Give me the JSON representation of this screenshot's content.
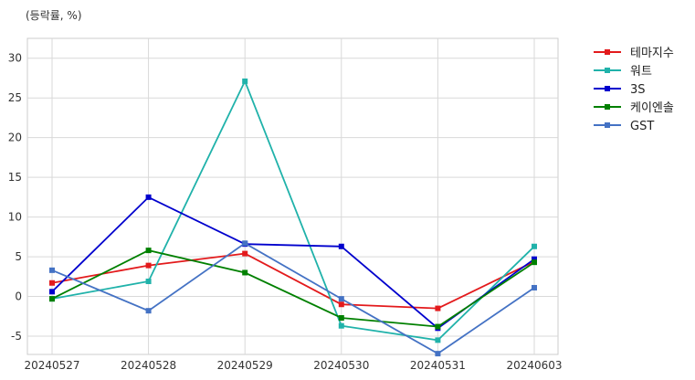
{
  "chart_data": {
    "type": "line",
    "title": "",
    "unit_label": "(등락률, %)",
    "xlabel": "",
    "ylabel": "",
    "x": [
      "20240527",
      "20240528",
      "20240529",
      "20240530",
      "20240531",
      "20240603"
    ],
    "ylim": [
      -7.3,
      32.5
    ],
    "yticks": [
      -5,
      0,
      5,
      10,
      15,
      20,
      25,
      30
    ],
    "grid": true,
    "legend": "right",
    "series": [
      {
        "name": "테마지수",
        "color": "#e31a1c",
        "values": [
          1.7,
          3.9,
          5.4,
          -1.0,
          -1.5,
          4.4
        ]
      },
      {
        "name": "워트",
        "color": "#20b2aa",
        "values": [
          -0.3,
          1.9,
          27.1,
          -3.7,
          -5.5,
          6.3
        ]
      },
      {
        "name": "3S",
        "color": "#0000cd",
        "values": [
          0.6,
          12.5,
          6.6,
          6.3,
          -4.0,
          4.7
        ]
      },
      {
        "name": "케이엔솔",
        "color": "#008000",
        "values": [
          -0.3,
          5.8,
          3.0,
          -2.7,
          -3.8,
          4.3
        ]
      },
      {
        "name": "GST",
        "color": "#4472c4",
        "values": [
          3.3,
          -1.8,
          6.7,
          -0.3,
          -7.2,
          1.1
        ]
      }
    ]
  }
}
